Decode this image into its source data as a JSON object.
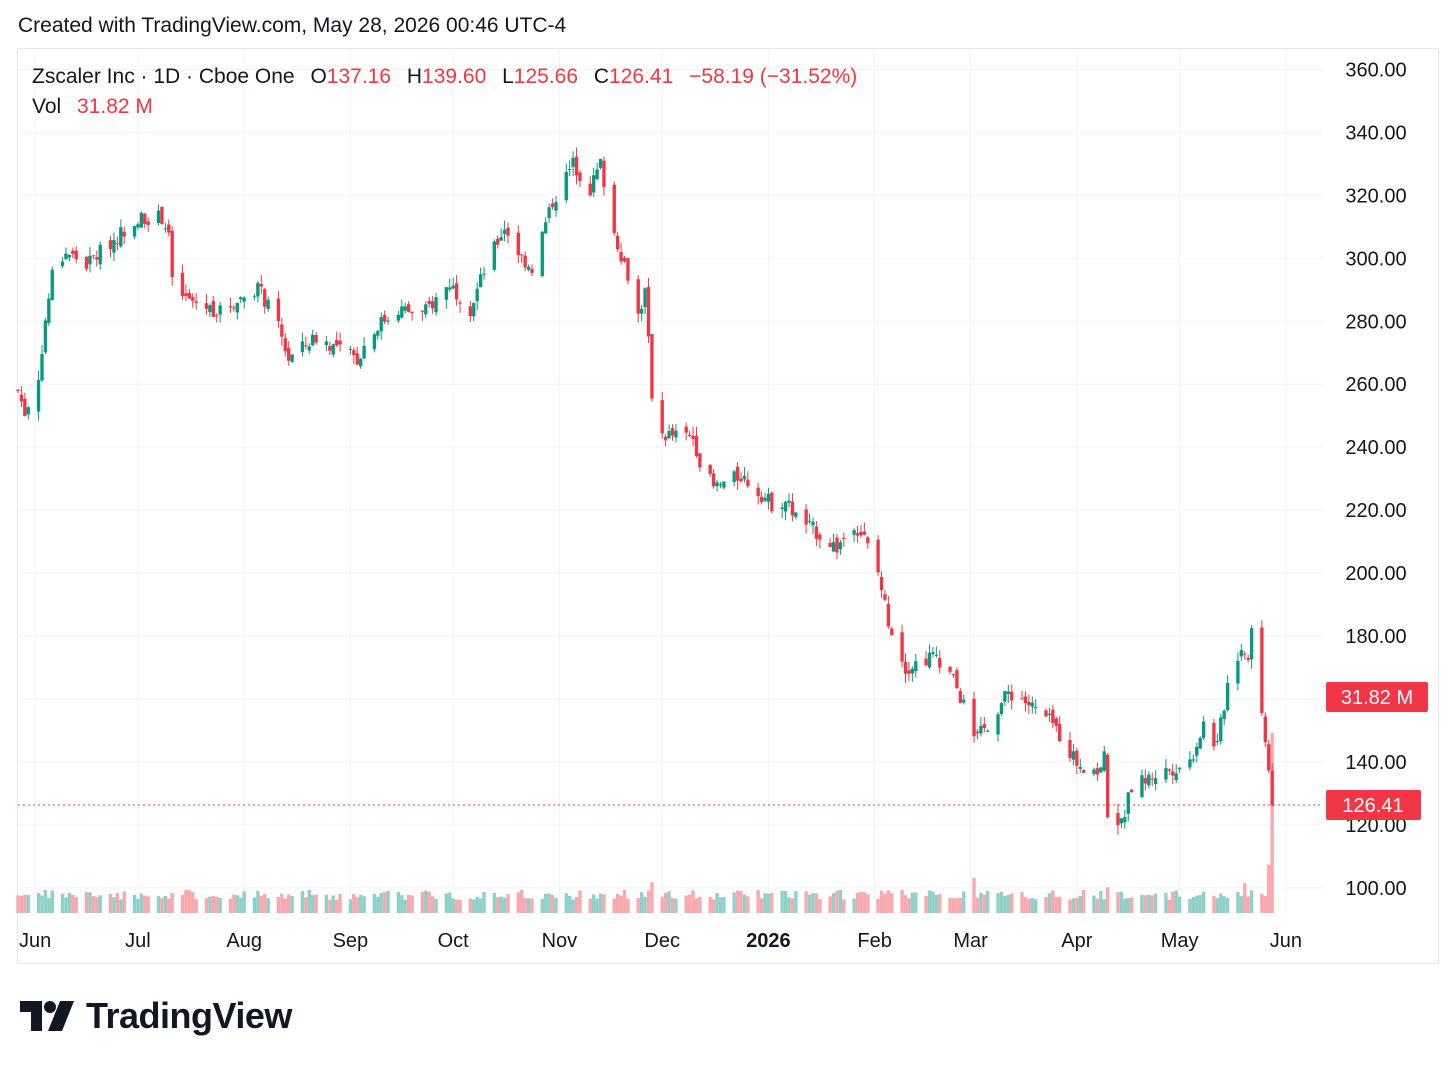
{
  "header": {
    "text": "Created with TradingView.com, May 28, 2026 00:46 UTC-4"
  },
  "legend": {
    "symbol": "Zscaler Inc · 1D · Cboe One",
    "o_label": "O",
    "o_value": "137.16",
    "h_label": "H",
    "h_value": "139.60",
    "l_label": "L",
    "l_value": "125.66",
    "c_label": "C",
    "c_value": "126.41",
    "change": "−58.19 (−31.52%)",
    "vol_label": "Vol",
    "vol_value": "31.82 M"
  },
  "badges": {
    "volume": "31.82 M",
    "price": "126.41"
  },
  "brand": {
    "name": "TradingView"
  },
  "colors": {
    "up": "#089981",
    "down": "#f23645",
    "up_vol": "#8fd1c8",
    "down_vol": "#f7a9ae",
    "grid": "#f0f3fa"
  },
  "chart_data": {
    "type": "candlestick",
    "title": "Zscaler Inc · 1D · Cboe One",
    "y_axis": {
      "min": 92,
      "max": 363,
      "ticks": [
        100,
        120,
        140,
        160,
        180,
        200,
        220,
        240,
        260,
        280,
        300,
        320,
        340,
        360
      ],
      "tick_labels": [
        "100.00",
        "120.00",
        "140.00",
        "",
        "180.00",
        "200.00",
        "220.00",
        "240.00",
        "260.00",
        "280.00",
        "300.00",
        "320.00",
        "340.00",
        "360.00"
      ]
    },
    "x_axis": {
      "start": "2025-05-27",
      "end": "2026-06-06",
      "ticks": [
        {
          "label": "Jun",
          "date": "2025-06-01"
        },
        {
          "label": "Jul",
          "date": "2025-07-01"
        },
        {
          "label": "Aug",
          "date": "2025-08-01"
        },
        {
          "label": "Sep",
          "date": "2025-09-01"
        },
        {
          "label": "Oct",
          "date": "2025-10-01"
        },
        {
          "label": "Nov",
          "date": "2025-11-01"
        },
        {
          "label": "Dec",
          "date": "2025-12-01"
        },
        {
          "label": "2026",
          "date": "2026-01-01",
          "bold": true
        },
        {
          "label": "Feb",
          "date": "2026-02-01"
        },
        {
          "label": "Mar",
          "date": "2026-03-01"
        },
        {
          "label": "Apr",
          "date": "2026-04-01"
        },
        {
          "label": "May",
          "date": "2026-05-01"
        },
        {
          "label": "Jun",
          "date": "2026-06-01"
        }
      ]
    },
    "price_anchors": [
      [
        "2025-05-27",
        258
      ],
      [
        "2025-05-29",
        251
      ],
      [
        "2025-06-02",
        263
      ],
      [
        "2025-06-04",
        280
      ],
      [
        "2025-06-06",
        295
      ],
      [
        "2025-06-10",
        302
      ],
      [
        "2025-06-16",
        298
      ],
      [
        "2025-06-24",
        306
      ],
      [
        "2025-07-01",
        313
      ],
      [
        "2025-07-08",
        313
      ],
      [
        "2025-07-10",
        308
      ],
      [
        "2025-07-11",
        292
      ],
      [
        "2025-07-15",
        287
      ],
      [
        "2025-07-25",
        283
      ],
      [
        "2025-08-05",
        291
      ],
      [
        "2025-08-11",
        278
      ],
      [
        "2025-08-14",
        268
      ],
      [
        "2025-08-22",
        275
      ],
      [
        "2025-09-03",
        268
      ],
      [
        "2025-09-08",
        278
      ],
      [
        "2025-09-15",
        284
      ],
      [
        "2025-09-22",
        282
      ],
      [
        "2025-09-30",
        292
      ],
      [
        "2025-10-06",
        284
      ],
      [
        "2025-10-10",
        296
      ],
      [
        "2025-10-16",
        310
      ],
      [
        "2025-10-21",
        300
      ],
      [
        "2025-10-24",
        297
      ],
      [
        "2025-10-30",
        318
      ],
      [
        "2025-11-05",
        330
      ],
      [
        "2025-11-10",
        322
      ],
      [
        "2025-11-13",
        330
      ],
      [
        "2025-11-17",
        308
      ],
      [
        "2025-11-21",
        295
      ],
      [
        "2025-11-24",
        282
      ],
      [
        "2025-11-26",
        289
      ],
      [
        "2025-11-28",
        257
      ],
      [
        "2025-12-01",
        244
      ],
      [
        "2025-12-10",
        243
      ],
      [
        "2025-12-12",
        236
      ],
      [
        "2025-12-16",
        227
      ],
      [
        "2025-12-24",
        231
      ],
      [
        "2026-01-02",
        222
      ],
      [
        "2026-01-06",
        223
      ],
      [
        "2026-01-09",
        218
      ],
      [
        "2026-01-15",
        213
      ],
      [
        "2026-01-21",
        208
      ],
      [
        "2026-01-26",
        216
      ],
      [
        "2026-01-29",
        211
      ],
      [
        "2026-02-02",
        200
      ],
      [
        "2026-02-05",
        185
      ],
      [
        "2026-02-10",
        170
      ],
      [
        "2026-02-19",
        174
      ],
      [
        "2026-02-24",
        166
      ],
      [
        "2026-02-27",
        158
      ],
      [
        "2026-03-02",
        146
      ],
      [
        "2026-03-06",
        152
      ],
      [
        "2026-03-12",
        162
      ],
      [
        "2026-03-16",
        160
      ],
      [
        "2026-03-25",
        152
      ],
      [
        "2026-04-01",
        140
      ],
      [
        "2026-04-07",
        137
      ],
      [
        "2026-04-09",
        141
      ],
      [
        "2026-04-10",
        124
      ],
      [
        "2026-04-14",
        120
      ],
      [
        "2026-04-17",
        132
      ],
      [
        "2026-04-24",
        136
      ],
      [
        "2026-05-04",
        140
      ],
      [
        "2026-05-08",
        152
      ],
      [
        "2026-05-12",
        145
      ],
      [
        "2026-05-15",
        165
      ],
      [
        "2026-05-19",
        177
      ],
      [
        "2026-05-21",
        172
      ],
      [
        "2026-05-22",
        183
      ],
      [
        "2026-05-27",
        137.16
      ]
    ],
    "last_candle": {
      "date": "2026-05-28",
      "open": 137.16,
      "high": 139.6,
      "low": 125.66,
      "close": 126.41
    },
    "volume": {
      "last": "31.82 M",
      "spikes": [
        [
          "2025-06-02",
          2.4
        ],
        [
          "2025-07-01",
          1.7
        ],
        [
          "2025-09-08",
          2.3
        ],
        [
          "2025-11-28",
          3.7
        ],
        [
          "2026-02-20",
          2.3
        ],
        [
          "2026-02-27",
          2.6
        ],
        [
          "2026-03-02",
          4.2
        ],
        [
          "2026-04-10",
          3.1
        ],
        [
          "2026-05-20",
          3.6
        ],
        [
          "2026-05-27",
          5.8
        ],
        [
          "2026-05-28",
          14.0
        ]
      ]
    }
  }
}
